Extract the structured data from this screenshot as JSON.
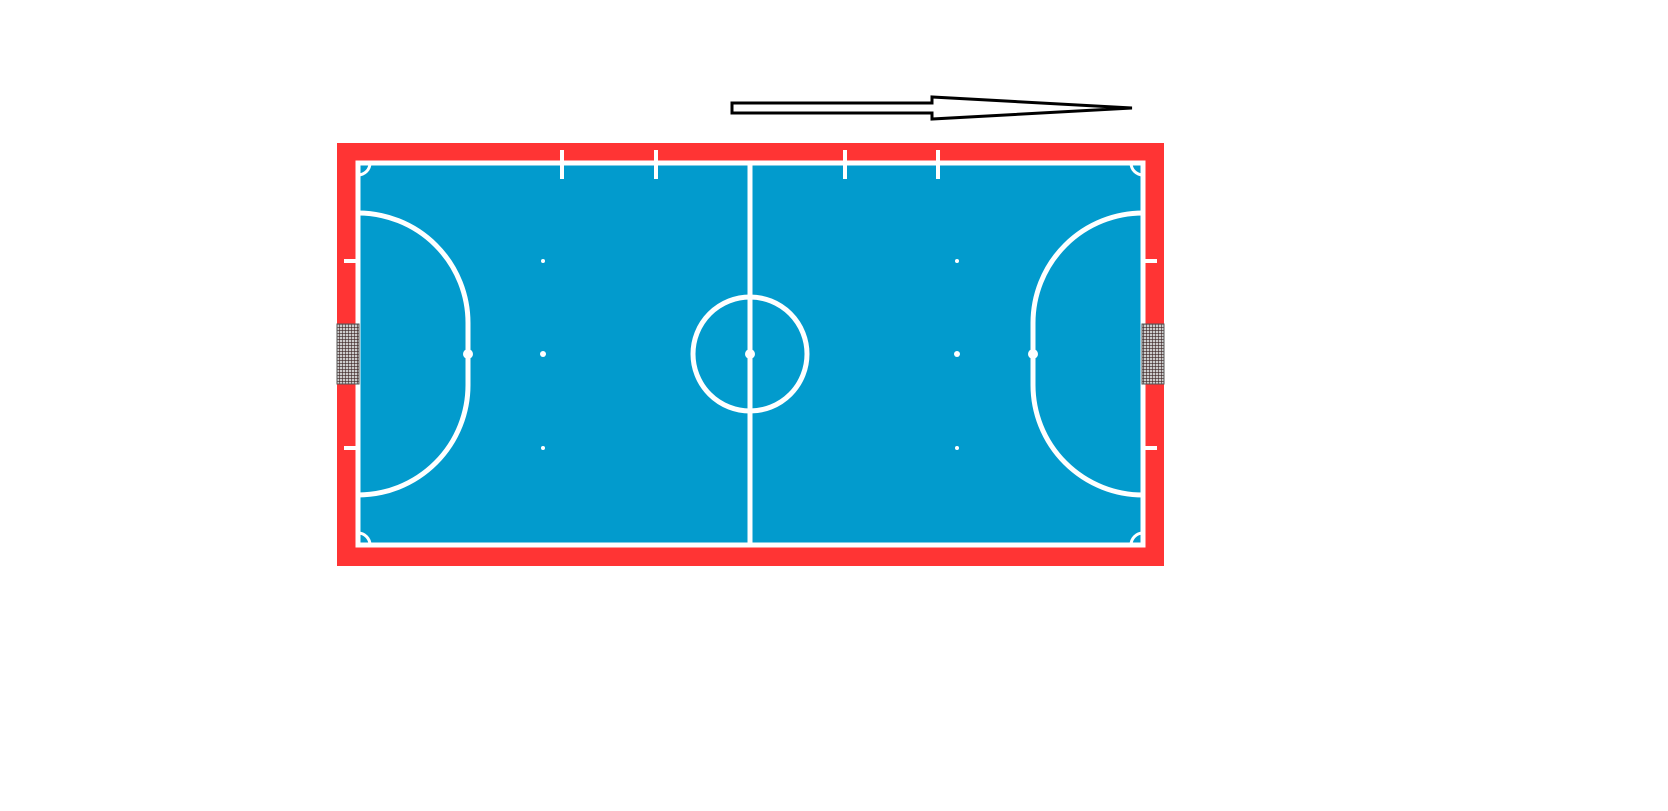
{
  "diagram": {
    "kind": "futsal-court",
    "direction_arrow": "pointing-right",
    "colors": {
      "background": "#ffffff",
      "border_surround": "#ff3434",
      "playing_surface": "#029bcd",
      "court_lines": "#ffffff",
      "arrow_outline": "#000000",
      "arrow_fill": "#ffffff",
      "goal_net": "#444444"
    }
  }
}
